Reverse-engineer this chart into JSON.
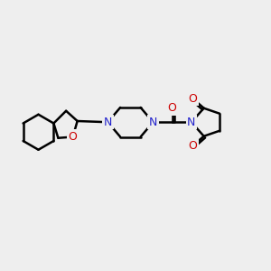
{
  "bg_color": "#eeeeee",
  "atom_color_N": "#2222cc",
  "atom_color_O": "#cc0000",
  "bond_color": "#000000",
  "bond_width": 1.8,
  "font_size_atom": 9.0,
  "fig_width": 3.0,
  "fig_height": 3.0,
  "dpi": 100,
  "xlim": [
    0,
    12
  ],
  "ylim": [
    2,
    8
  ]
}
